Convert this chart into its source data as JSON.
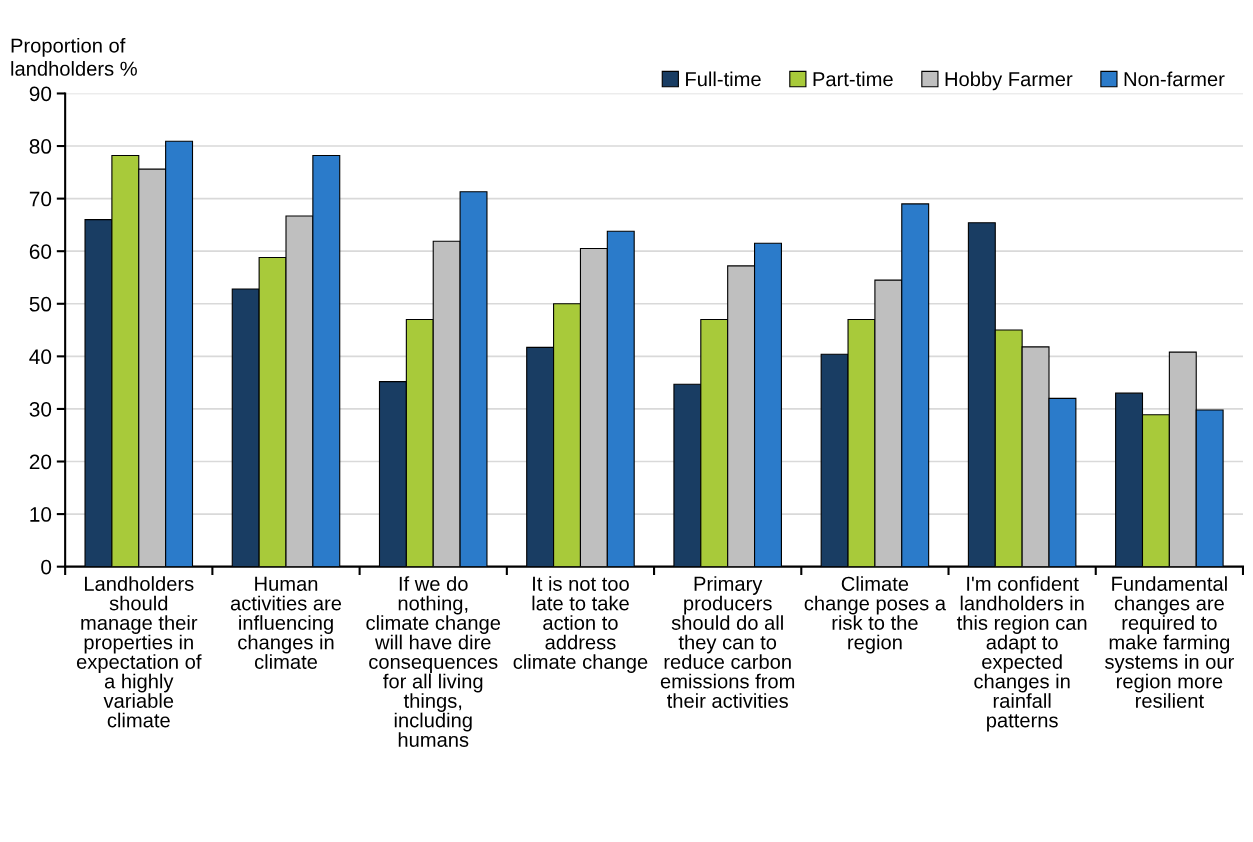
{
  "chart_data": {
    "type": "bar",
    "ylabel": "Proportion of\nlandholders %",
    "categories": [
      "Landholders\nshould\nmanage their\nproperties in\nexpectation of\na highly\nvariable\nclimate",
      "Human\nactivities are\ninfluencing\nchanges in\nclimate",
      "If we do\nnothing,\nclimate change\nwill have dire\nconsequences\nfor all living\nthings,\nincluding\nhumans",
      "It is not too\nlate to take\naction to\naddress\nclimate change",
      "Primary\nproducers\nshould do all\nthey can to\nreduce carbon\nemissions from\ntheir activities",
      "Climate\nchange poses a\nrisk to the\nregion",
      "I'm confident\nlandholders in\nthis region can\nadapt to\nexpected\nchanges in\nrainfall\npatterns",
      "Fundamental\nchanges are\nrequired to\nmake farming\nsystems in our\nregion more\nresilient"
    ],
    "series": [
      {
        "name": "Full-time",
        "color": "#193d63",
        "values": [
          66.0,
          52.8,
          35.2,
          41.7,
          34.7,
          40.4,
          65.4,
          33.0
        ]
      },
      {
        "name": "Part-time",
        "color": "#a8ca3a",
        "values": [
          78.2,
          58.8,
          47.0,
          50.0,
          47.0,
          47.0,
          45.0,
          28.9
        ]
      },
      {
        "name": "Hobby Farmer",
        "color": "#bfbfbf",
        "values": [
          75.6,
          66.7,
          61.9,
          60.5,
          57.2,
          54.5,
          41.8,
          40.8
        ]
      },
      {
        "name": "Non-farmer",
        "color": "#2b7bca",
        "values": [
          80.9,
          78.2,
          71.3,
          63.8,
          61.5,
          69.0,
          32.0,
          29.8
        ]
      }
    ],
    "ylim": [
      0,
      90
    ],
    "yticks": [
      0,
      10,
      20,
      30,
      40,
      50,
      60,
      70,
      80,
      90
    ],
    "grid": "y",
    "legend": "top right"
  }
}
